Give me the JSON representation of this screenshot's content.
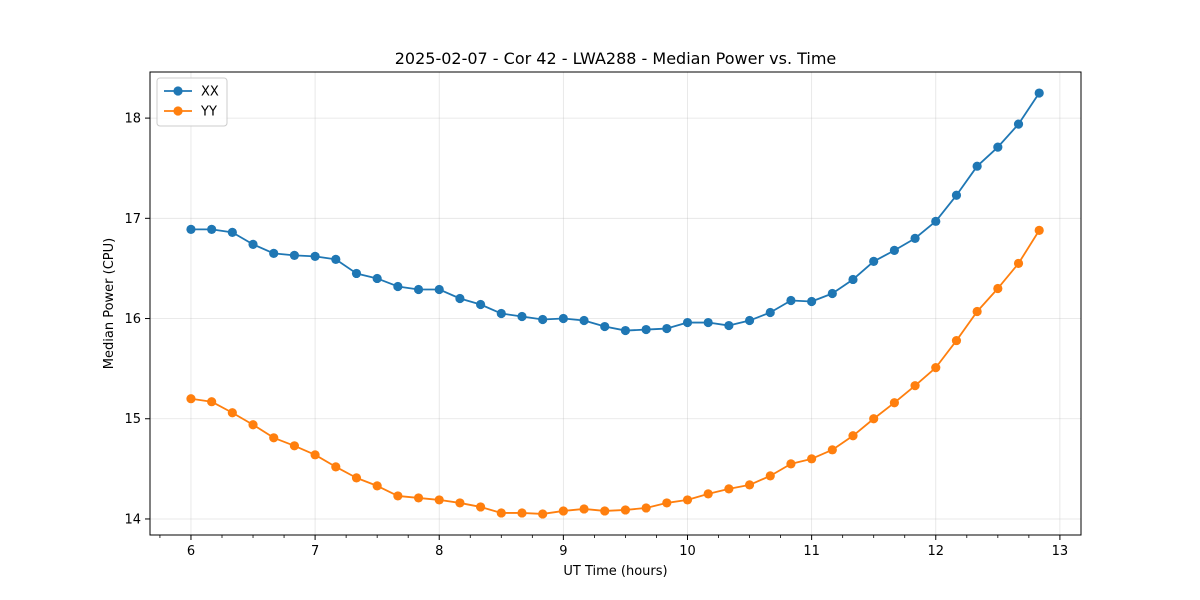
{
  "chart_data": {
    "type": "line",
    "title": "2025-02-07 - Cor 42 - LWA288 - Median Power vs. Time",
    "xlabel": "UT Time (hours)",
    "ylabel": "Median Power (CPU)",
    "xlim": [
      5.67,
      13.17
    ],
    "ylim": [
      13.84,
      18.46
    ],
    "xticks": [
      6,
      7,
      8,
      9,
      10,
      11,
      12,
      13
    ],
    "yticks": [
      14,
      15,
      16,
      17,
      18
    ],
    "x_minor_tick_step": 0.25,
    "grid": true,
    "legend_position": "upper-left",
    "markers": "circle",
    "x": [
      6.0,
      6.1667,
      6.3333,
      6.5,
      6.6667,
      6.8333,
      7.0,
      7.1667,
      7.3333,
      7.5,
      7.6667,
      7.8333,
      8.0,
      8.1667,
      8.3333,
      8.5,
      8.6667,
      8.8333,
      9.0,
      9.1667,
      9.3333,
      9.5,
      9.6667,
      9.8333,
      10.0,
      10.1667,
      10.3333,
      10.5,
      10.6667,
      10.8333,
      11.0,
      11.1667,
      11.3333,
      11.5,
      11.6667,
      11.8333,
      12.0,
      12.1667,
      12.3333,
      12.5,
      12.6667,
      12.8333
    ],
    "series": [
      {
        "name": "XX",
        "color": "#1f77b4",
        "values": [
          16.89,
          16.89,
          16.86,
          16.74,
          16.65,
          16.63,
          16.62,
          16.59,
          16.45,
          16.4,
          16.32,
          16.29,
          16.29,
          16.2,
          16.14,
          16.05,
          16.02,
          15.99,
          16.0,
          15.98,
          15.92,
          15.88,
          15.89,
          15.9,
          15.96,
          15.96,
          15.93,
          15.98,
          16.06,
          16.18,
          16.17,
          16.25,
          16.39,
          16.57,
          16.68,
          16.8,
          16.97,
          17.23,
          17.52,
          17.71,
          17.94,
          18.25
        ]
      },
      {
        "name": "YY",
        "color": "#ff7f0e",
        "values": [
          15.2,
          15.17,
          15.06,
          14.94,
          14.81,
          14.73,
          14.64,
          14.52,
          14.41,
          14.33,
          14.23,
          14.21,
          14.19,
          14.16,
          14.12,
          14.06,
          14.06,
          14.05,
          14.08,
          14.1,
          14.08,
          14.09,
          14.11,
          14.16,
          14.19,
          14.25,
          14.3,
          14.34,
          14.43,
          14.55,
          14.6,
          14.69,
          14.83,
          15.0,
          15.16,
          15.33,
          15.51,
          15.78,
          16.07,
          16.3,
          16.55,
          16.88
        ]
      }
    ]
  }
}
